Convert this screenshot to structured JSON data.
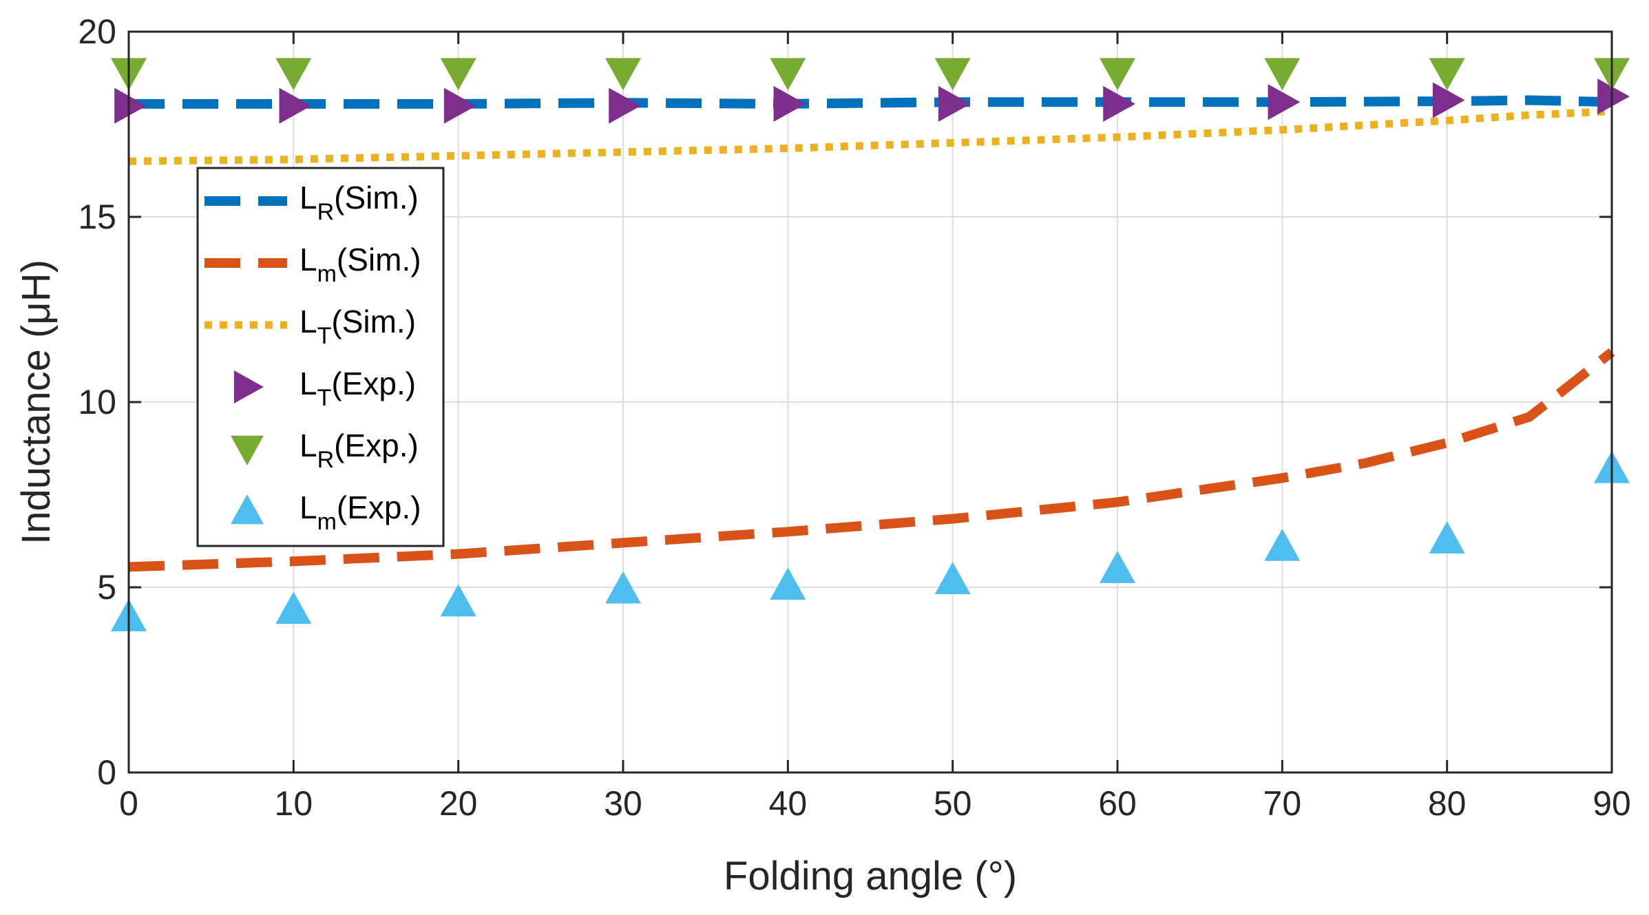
{
  "chart_data": {
    "type": "line",
    "title": "",
    "xlabel": "Folding angle (°)",
    "ylabel": "Inductance (μH)",
    "xlim": [
      0,
      90
    ],
    "ylim": [
      0,
      20
    ],
    "xticks": [
      0,
      10,
      20,
      30,
      40,
      50,
      60,
      70,
      80,
      90
    ],
    "yticks": [
      0,
      5,
      10,
      15,
      20
    ],
    "grid": true,
    "legend_position": "upper-left",
    "series": [
      {
        "name": "LR(Sim.)",
        "label_main": "L",
        "label_sub": "R",
        "label_tail": "(Sim.)",
        "kind": "line",
        "style": "dashed",
        "color": "#0072BD",
        "x": [
          0,
          10,
          20,
          30,
          40,
          50,
          60,
          70,
          80,
          85,
          90
        ],
        "y": [
          18.05,
          18.05,
          18.05,
          18.08,
          18.05,
          18.1,
          18.1,
          18.1,
          18.12,
          18.15,
          18.1
        ]
      },
      {
        "name": "Lm(Sim.)",
        "label_main": "L",
        "label_sub": "m",
        "label_tail": "(Sim.)",
        "kind": "line",
        "style": "dashed",
        "color": "#D95319",
        "x": [
          0,
          10,
          20,
          30,
          40,
          50,
          60,
          70,
          75,
          80,
          85,
          90
        ],
        "y": [
          5.55,
          5.7,
          5.9,
          6.2,
          6.5,
          6.85,
          7.3,
          7.95,
          8.35,
          8.9,
          9.6,
          11.35
        ]
      },
      {
        "name": "LT(Sim.)",
        "label_main": "L",
        "label_sub": "T",
        "label_tail": "(Sim.)",
        "kind": "line",
        "style": "dotted",
        "color": "#EDB120",
        "x": [
          0,
          10,
          20,
          30,
          40,
          50,
          60,
          70,
          80,
          85,
          90
        ],
        "y": [
          16.5,
          16.55,
          16.65,
          16.75,
          16.85,
          17.0,
          17.15,
          17.35,
          17.6,
          17.75,
          17.85
        ]
      },
      {
        "name": "LT(Exp.)",
        "label_main": "L",
        "label_sub": "T",
        "label_tail": "(Exp.)",
        "kind": "marker",
        "marker": "triangle-right",
        "color": "#7E2F8E",
        "x": [
          0,
          10,
          20,
          30,
          40,
          50,
          60,
          70,
          80,
          90
        ],
        "y": [
          18.0,
          18.0,
          18.0,
          18.0,
          18.05,
          18.05,
          18.05,
          18.1,
          18.15,
          18.25
        ]
      },
      {
        "name": "LR(Exp.)",
        "label_main": "L",
        "label_sub": "R",
        "label_tail": "(Exp.)",
        "kind": "marker",
        "marker": "triangle-down",
        "color": "#77AC30",
        "x": [
          0,
          10,
          20,
          30,
          40,
          50,
          60,
          70,
          80,
          90
        ],
        "y": [
          18.9,
          18.9,
          18.9,
          18.9,
          18.9,
          18.9,
          18.9,
          18.9,
          18.9,
          18.9
        ]
      },
      {
        "name": "Lm(Exp.)",
        "label_main": "L",
        "label_sub": "m",
        "label_tail": "(Exp.)",
        "kind": "marker",
        "marker": "triangle-up",
        "color": "#4DBEEE",
        "x": [
          0,
          10,
          20,
          30,
          40,
          50,
          60,
          70,
          80,
          90
        ],
        "y": [
          4.2,
          4.4,
          4.6,
          4.95,
          5.05,
          5.2,
          5.5,
          6.1,
          6.3,
          8.2
        ]
      }
    ]
  }
}
